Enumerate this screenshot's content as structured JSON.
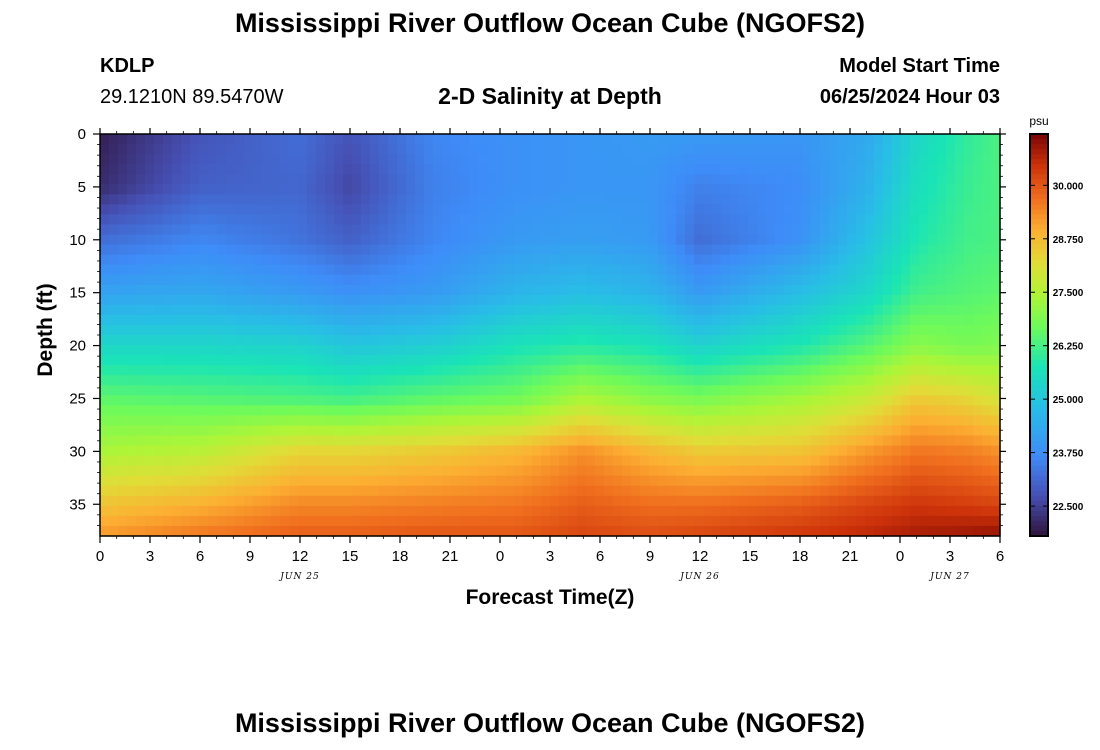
{
  "header": {
    "title": "Mississippi River Outflow Ocean Cube (NGOFS2)",
    "station_id": "KDLP",
    "station_coords": "29.1210N  89.5470W",
    "plot_title": "2-D Salinity at Depth",
    "model_start_label": "Model Start Time",
    "model_start_time": "06/25/2024 Hour 03"
  },
  "footer": {
    "title": "Mississippi River Outflow Ocean Cube (NGOFS2)"
  },
  "chart_data": {
    "type": "heatmap",
    "variable": "Salinity",
    "xlabel": "Forecast Time(Z)",
    "ylabel": "Depth (ft)",
    "x_range_hours": [
      0,
      54
    ],
    "y_range_ft": [
      0,
      38
    ],
    "y_inverted": true,
    "x_tick_labels": [
      "0",
      "3",
      "6",
      "9",
      "12",
      "15",
      "18",
      "21",
      "0",
      "3",
      "6",
      "9",
      "12",
      "15",
      "18",
      "21",
      "0",
      "3",
      "6"
    ],
    "y_tick_values": [
      0,
      5,
      10,
      15,
      20,
      25,
      30,
      35
    ],
    "date_labels": [
      {
        "text": "JUN 25",
        "hour": 12
      },
      {
        "text": "JUN 26",
        "hour": 36
      },
      {
        "text": "JUN 27",
        "hour": 51
      }
    ],
    "colorbar": {
      "unit": "psu",
      "range": [
        21.8,
        31.2
      ],
      "tick_values": [
        22.5,
        23.75,
        25.0,
        26.25,
        27.5,
        28.75,
        30.0
      ],
      "tick_labels": [
        "22.500",
        "23.750",
        "25.000",
        "26.250",
        "27.500",
        "28.750",
        "30.000"
      ],
      "colormap": "turbo"
    },
    "grid": false,
    "legend_placement": "right",
    "profile_depths_ft": [
      0,
      5,
      10,
      15,
      20,
      25,
      30,
      35,
      38
    ],
    "profile_times_hours": [
      0,
      6,
      12,
      15,
      20,
      25,
      29,
      33,
      36,
      42,
      46,
      49,
      52,
      54
    ],
    "salinity_profiles": [
      [
        22.0,
        22.2,
        23.2,
        24.2,
        25.4,
        26.5,
        27.4,
        28.6,
        29.2
      ],
      [
        22.8,
        23.0,
        23.6,
        24.3,
        25.4,
        26.4,
        27.6,
        28.9,
        29.6
      ],
      [
        23.2,
        23.1,
        23.3,
        24.0,
        25.3,
        26.3,
        28.3,
        29.4,
        29.9
      ],
      [
        22.8,
        22.6,
        23.0,
        23.8,
        25.0,
        26.2,
        28.3,
        29.4,
        29.9
      ],
      [
        23.6,
        23.5,
        23.6,
        24.0,
        25.2,
        26.5,
        28.5,
        29.5,
        30.0
      ],
      [
        23.8,
        23.8,
        24.0,
        24.6,
        25.7,
        26.7,
        28.8,
        29.6,
        30.0
      ],
      [
        23.9,
        23.9,
        24.1,
        24.8,
        25.9,
        27.4,
        29.3,
        29.9,
        30.2
      ],
      [
        24.0,
        23.9,
        24.0,
        24.6,
        25.7,
        27.0,
        28.8,
        29.7,
        30.1
      ],
      [
        24.0,
        23.5,
        23.2,
        24.0,
        25.3,
        26.8,
        28.5,
        29.7,
        30.2
      ],
      [
        23.9,
        23.7,
        23.8,
        24.8,
        25.8,
        27.3,
        28.6,
        29.9,
        30.4
      ],
      [
        24.3,
        24.5,
        24.9,
        25.4,
        26.4,
        27.8,
        29.2,
        30.2,
        30.6
      ],
      [
        25.4,
        25.6,
        25.8,
        26.2,
        27.0,
        28.5,
        29.6,
        30.4,
        30.8
      ],
      [
        26.0,
        26.1,
        26.2,
        26.4,
        26.8,
        28.3,
        29.5,
        30.3,
        30.9
      ],
      [
        26.3,
        26.3,
        26.3,
        26.5,
        26.9,
        28.0,
        29.3,
        30.2,
        31.0
      ]
    ]
  }
}
